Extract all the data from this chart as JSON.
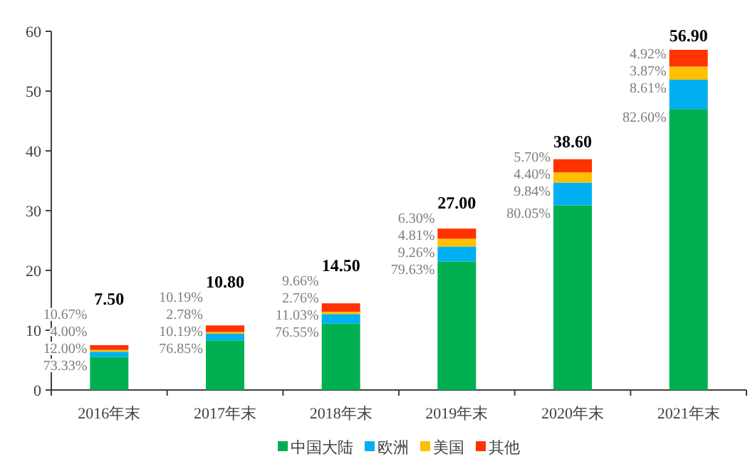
{
  "chart_data": {
    "type": "bar",
    "stacked": true,
    "categories": [
      "2016年末",
      "2017年末",
      "2018年末",
      "2019年末",
      "2020年末",
      "2021年末"
    ],
    "series": [
      {
        "name": "中国大陆",
        "color": "#00b050",
        "values": [
          5.5,
          8.3,
          11.1,
          21.5,
          30.9,
          47.0
        ]
      },
      {
        "name": "欧洲",
        "color": "#00b0f0",
        "values": [
          0.9,
          1.1,
          1.6,
          2.5,
          3.8,
          4.9
        ]
      },
      {
        "name": "美国",
        "color": "#ffc000",
        "values": [
          0.3,
          0.3,
          0.4,
          1.3,
          1.7,
          2.2
        ]
      },
      {
        "name": "其他",
        "color": "#ff3300",
        "values": [
          0.8,
          1.1,
          1.4,
          1.7,
          2.2,
          2.8
        ]
      }
    ],
    "annotations": [
      {
        "text": "73.33%",
        "x": "2016年末",
        "y": 5.5
      },
      {
        "text": "12.00%",
        "x": "2016年末",
        "y": 6.4
      },
      {
        "text": "4.00%",
        "x": "2016年末",
        "y": 6.7
      },
      {
        "text": "10.67%",
        "x": "2016年末",
        "y": 7.5
      },
      {
        "text": "76.85%",
        "x": "2017年末",
        "y": 8.3
      },
      {
        "text": "10.19%",
        "x": "2017年末",
        "y": 9.4
      },
      {
        "text": "2.78%",
        "x": "2017年末",
        "y": 9.7
      },
      {
        "text": "10.19%",
        "x": "2017年末",
        "y": 10.8
      },
      {
        "text": "76.55%",
        "x": "2018年末",
        "y": 11.1
      },
      {
        "text": "11.03%",
        "x": "2018年末",
        "y": 12.7
      },
      {
        "text": "2.76%",
        "x": "2018年末",
        "y": 13.1
      },
      {
        "text": "9.66%",
        "x": "2018年末",
        "y": 14.5
      },
      {
        "text": "79.63%",
        "x": "2019年末",
        "y": 21.5
      },
      {
        "text": "9.26%",
        "x": "2019年末",
        "y": 24.0
      },
      {
        "text": "4.81%",
        "x": "2019年末",
        "y": 25.3
      },
      {
        "text": "6.30%",
        "x": "2019年末",
        "y": 27.0
      },
      {
        "text": "80.05%",
        "x": "2020年末",
        "y": 30.9
      },
      {
        "text": "9.84%",
        "x": "2020年末",
        "y": 34.7
      },
      {
        "text": "4.40%",
        "x": "2020年末",
        "y": 36.4
      },
      {
        "text": "5.70%",
        "x": "2020年末",
        "y": 38.6
      },
      {
        "text": "82.60%",
        "x": "2021年末",
        "y": 47.0
      },
      {
        "text": "8.61%",
        "x": "2021年末",
        "y": 51.9
      },
      {
        "text": "3.87%",
        "x": "2021年末",
        "y": 54.1
      },
      {
        "text": "4.92%",
        "x": "2021年末",
        "y": 56.9
      }
    ],
    "totals": [
      "7.50",
      "10.80",
      "14.50",
      "27.00",
      "38.60",
      "56.90"
    ],
    "ylim": [
      0,
      60
    ],
    "yticks": [
      0,
      10,
      20,
      30,
      40,
      50,
      60
    ],
    "grid": false,
    "legend": "bottom"
  }
}
